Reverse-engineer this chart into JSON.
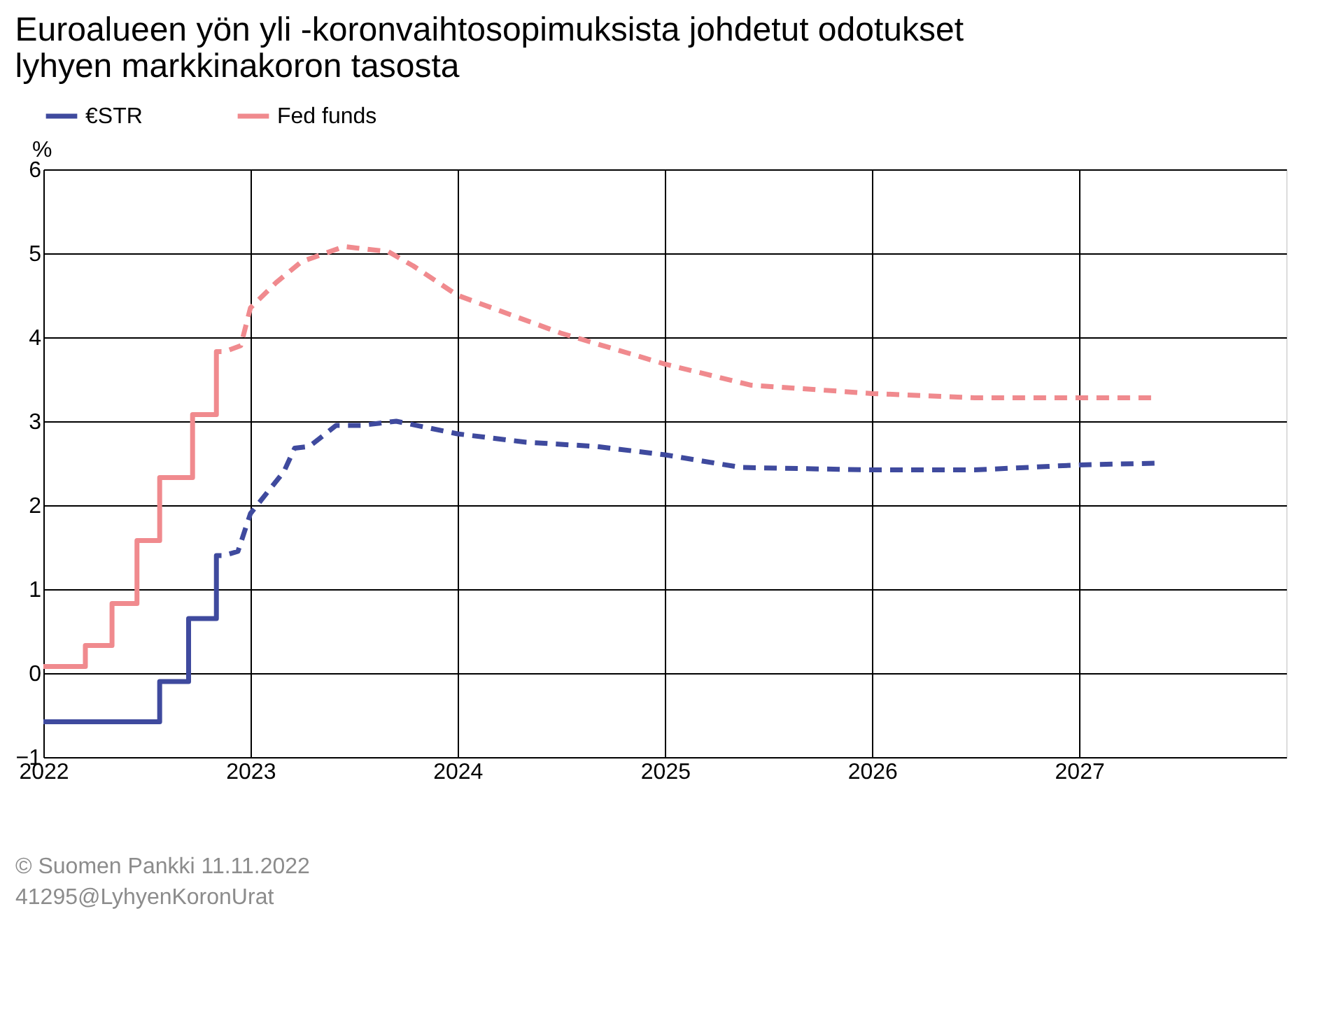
{
  "chart_data": {
    "type": "line",
    "title": "Euroalueen yön yli -koronvaihtosopimuksista johdetut odotukset\nlyhyen markkinakoron tasosta",
    "ylabel": "%",
    "xlim": [
      "2022-01-01",
      "2028-01-01"
    ],
    "xticks": [
      {
        "value": "2022-01-01",
        "label": "2022"
      },
      {
        "value": "2023-01-01",
        "label": "2023"
      },
      {
        "value": "2024-01-01",
        "label": "2024"
      },
      {
        "value": "2025-01-01",
        "label": "2025"
      },
      {
        "value": "2026-01-01",
        "label": "2026"
      },
      {
        "value": "2027-01-01",
        "label": "2027"
      }
    ],
    "ylim": [
      -1,
      6
    ],
    "yticks": [
      -1,
      0,
      1,
      2,
      3,
      4,
      5,
      6
    ],
    "grid": true,
    "legend": "top left",
    "series": [
      {
        "name": "€STR",
        "type": "step",
        "line_style": "solid",
        "color": "#3f4a9e",
        "x": [
          "2022-01-01",
          "2022-07-25",
          "2022-09-14",
          "2022-11-02",
          "2022-11-11"
        ],
        "values": [
          -0.58,
          -0.1,
          0.65,
          1.4,
          1.4
        ]
      },
      {
        "name": "Fed funds",
        "type": "step",
        "line_style": "solid",
        "color": "#f08a8e",
        "x": [
          "2022-01-01",
          "2022-03-16",
          "2022-05-02",
          "2022-06-15",
          "2022-07-25",
          "2022-09-21",
          "2022-11-02",
          "2022-11-11"
        ],
        "values": [
          0.08,
          0.33,
          0.83,
          1.58,
          2.33,
          3.08,
          3.83,
          3.83
        ]
      },
      {
        "type": "line",
        "line_style": "dashed",
        "color": "#3f4a9e",
        "x": [
          "2022-11-25",
          "2022-12-10",
          "2023-01-01",
          "2023-03-01",
          "2023-03-20",
          "2023-04-15",
          "2023-06-01",
          "2023-07-15",
          "2023-09-15",
          "2024-01-01",
          "2024-05-01",
          "2024-09-01",
          "2025-01-01",
          "2025-05-15",
          "2026-01-01",
          "2026-07-01",
          "2027-01-01",
          "2027-05-15"
        ],
        "values": [
          1.42,
          1.45,
          1.9,
          2.4,
          2.68,
          2.7,
          2.95,
          2.95,
          3.0,
          2.85,
          2.75,
          2.7,
          2.6,
          2.45,
          2.42,
          2.42,
          2.48,
          2.5
        ]
      },
      {
        "type": "line",
        "line_style": "dashed",
        "color": "#f08a8e",
        "x": [
          "2022-11-25",
          "2022-12-15",
          "2023-01-01",
          "2023-02-15",
          "2023-04-01",
          "2023-06-15",
          "2023-09-01",
          "2023-10-15",
          "2024-01-01",
          "2024-07-01",
          "2025-01-01",
          "2025-06-01",
          "2026-01-01",
          "2026-07-01",
          "2027-01-01",
          "2027-05-15"
        ],
        "values": [
          3.85,
          3.9,
          4.35,
          4.65,
          4.9,
          5.08,
          5.02,
          4.85,
          4.5,
          4.05,
          3.68,
          3.43,
          3.33,
          3.28,
          3.28,
          3.28
        ]
      }
    ],
    "annotations": [
      "© Suomen Pankki 11.11.2022",
      "41295@LyhyenKoronUrat"
    ]
  }
}
